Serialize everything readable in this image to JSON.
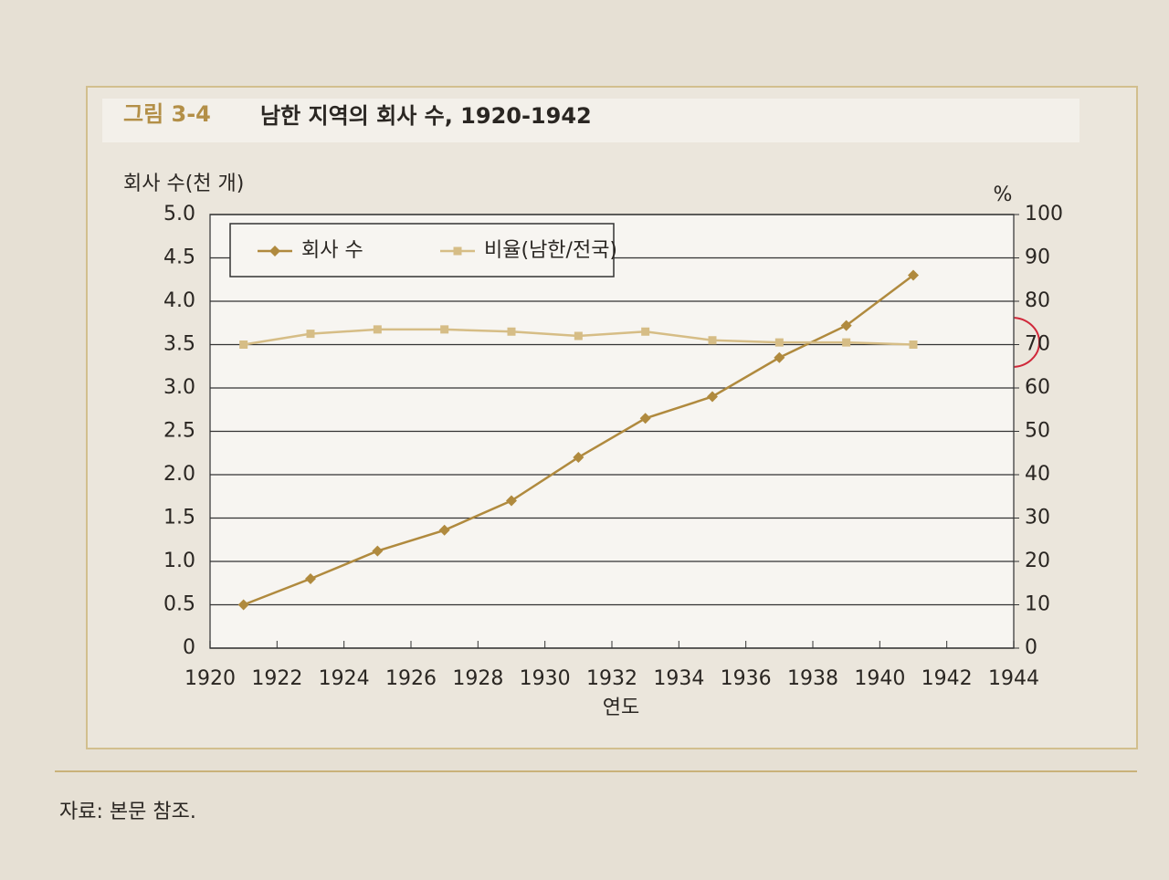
{
  "chart_data": {
    "type": "line",
    "figure_label": "그림 3-4",
    "title": "남한 지역의 회사 수, 1920-1942",
    "ylabel": "회사 수(천 개)",
    "y2label": "%",
    "xlabel": "연도",
    "source": "자료: 본문 참조.",
    "x": [
      1921,
      1923,
      1925,
      1927,
      1929,
      1931,
      1933,
      1935,
      1937,
      1939,
      1941
    ],
    "series": [
      {
        "name": "회사 수",
        "color": "#b08a3e",
        "marker": "diamond",
        "values": [
          0.5,
          0.8,
          1.12,
          1.36,
          1.7,
          2.2,
          2.65,
          2.9,
          3.35,
          3.72,
          4.3
        ]
      },
      {
        "name": "비율(남한/전국)",
        "color": "#d6bd86",
        "marker": "square",
        "axis": "y2",
        "values": [
          70,
          72.5,
          73.5,
          73.5,
          73,
          72,
          73,
          71,
          70.5,
          70.5,
          70
        ]
      }
    ],
    "xlim": [
      1920,
      1944
    ],
    "xticks": [
      1920,
      1922,
      1924,
      1926,
      1928,
      1930,
      1932,
      1934,
      1936,
      1938,
      1940,
      1942,
      1944
    ],
    "ylim": [
      0,
      5
    ],
    "yticks": [
      0,
      0.5,
      {
        "value": 1,
        "label": "1.0"
      },
      1.5,
      {
        "value": 2,
        "label": "2.0"
      },
      2.5,
      {
        "value": 3,
        "label": "3.0"
      },
      3.5,
      {
        "value": 4,
        "label": "4.0"
      },
      4.5,
      {
        "value": 5,
        "label": "5.0"
      }
    ],
    "y2lim": [
      0,
      100
    ],
    "y2ticks": [
      0,
      10,
      20,
      30,
      40,
      50,
      60,
      70,
      80,
      90,
      100
    ],
    "grid": true,
    "legend": "top-left"
  }
}
